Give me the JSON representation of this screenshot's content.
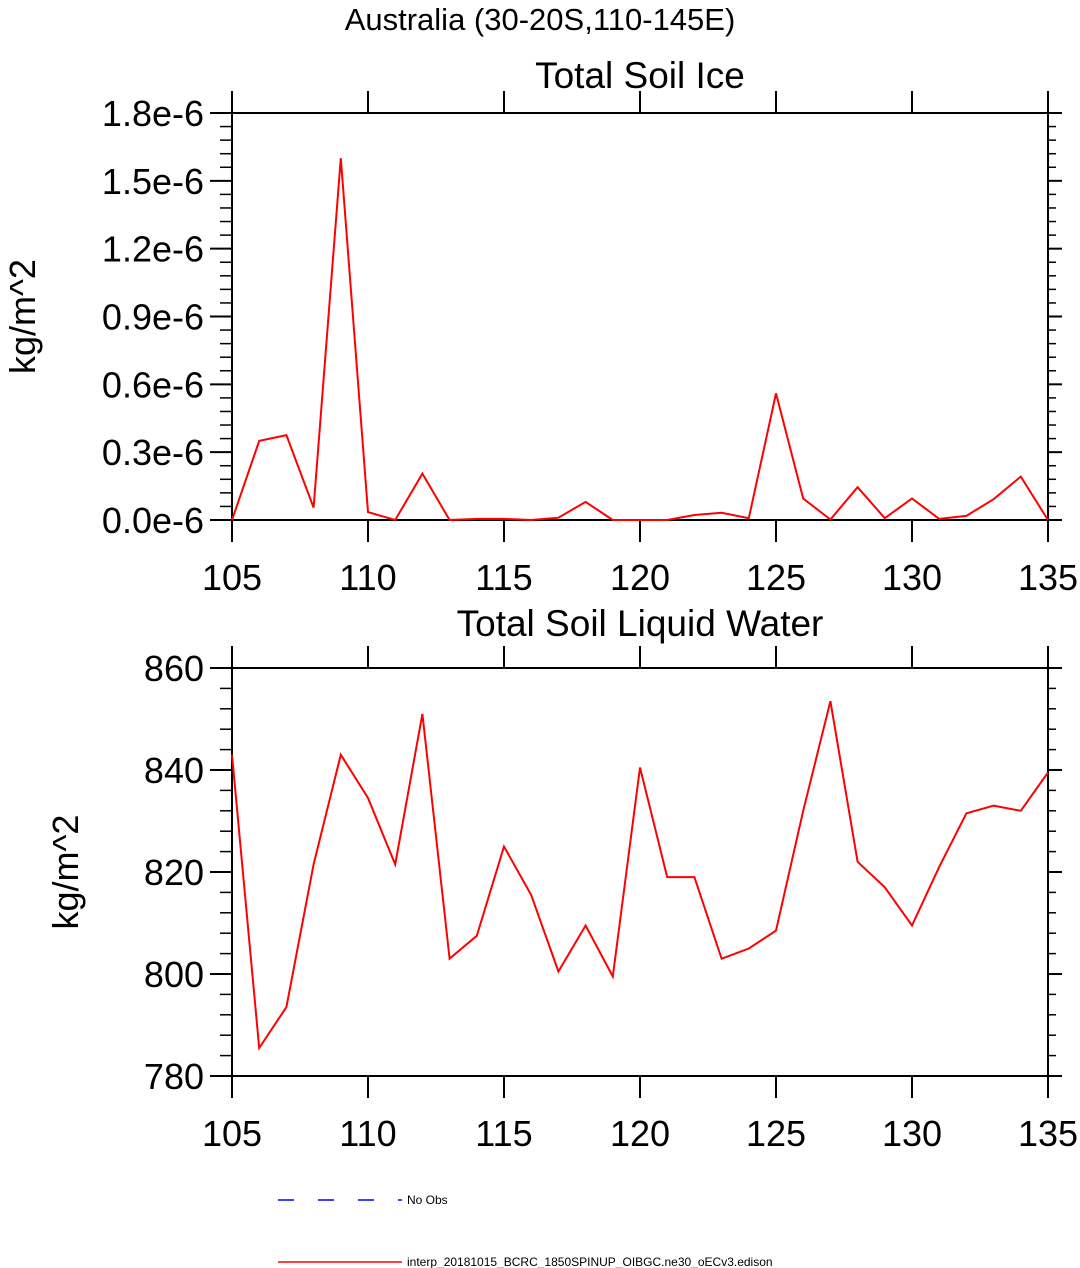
{
  "figure": {
    "title": "Australia (30-20S,110-145E)"
  },
  "colors": {
    "model_line": "#ff0000",
    "obs_line": "#0000ff",
    "axes": "#000000"
  },
  "chart_data": [
    {
      "type": "line",
      "title": "Total Soil Ice",
      "xlabel": "",
      "ylabel": "kg/m^2",
      "xlim": [
        105,
        135
      ],
      "ylim": [
        0,
        1.8e-06
      ],
      "x_ticks": [
        105,
        110,
        115,
        120,
        125,
        130,
        135
      ],
      "x_tick_labels": [
        "105",
        "110",
        "115",
        "120",
        "125",
        "130",
        "135"
      ],
      "y_ticks": [
        0,
        3e-07,
        6e-07,
        9e-07,
        1.2e-06,
        1.5e-06,
        1.8e-06
      ],
      "y_tick_labels": [
        "0.0e-6",
        "0.3e-6",
        "0.6e-6",
        "0.9e-6",
        "1.2e-6",
        "1.5e-6",
        "1.8e-6"
      ],
      "grid": false,
      "series": [
        {
          "name": "interp_20181015_BCRC_1850SPINUP_OIBGC.ne30_oECv3.edison",
          "color": "#ff0000",
          "x": [
            105,
            106,
            107,
            108,
            109,
            110,
            111,
            112,
            113,
            114,
            115,
            116,
            117,
            118,
            119,
            120,
            121,
            122,
            123,
            124,
            125,
            126,
            127,
            128,
            129,
            130,
            131,
            132,
            133,
            134,
            135
          ],
          "y": [
            0,
            3.5e-07,
            3.75e-07,
            5.5e-08,
            1.6e-06,
            3.5e-08,
            0,
            2.05e-07,
            0,
            5e-09,
            5e-09,
            0,
            1e-08,
            8e-08,
            0,
            0,
            0,
            2.2e-08,
            3.2e-08,
            8e-09,
            5.6e-07,
            9.5e-08,
            2e-09,
            1.45e-07,
            8e-09,
            9.5e-08,
            5e-09,
            1.8e-08,
            9.2e-08,
            1.92e-07,
            0
          ]
        }
      ]
    },
    {
      "type": "line",
      "title": "Total Soil Liquid Water",
      "xlabel": "",
      "ylabel": "kg/m^2",
      "xlim": [
        105,
        135
      ],
      "ylim": [
        780,
        860
      ],
      "x_ticks": [
        105,
        110,
        115,
        120,
        125,
        130,
        135
      ],
      "x_tick_labels": [
        "105",
        "110",
        "115",
        "120",
        "125",
        "130",
        "135"
      ],
      "y_ticks": [
        780,
        800,
        820,
        840,
        860
      ],
      "y_tick_labels": [
        "780",
        "800",
        "820",
        "840",
        "860"
      ],
      "grid": false,
      "series": [
        {
          "name": "interp_20181015_BCRC_1850SPINUP_OIBGC.ne30_oECv3.edison",
          "color": "#ff0000",
          "x": [
            105,
            106,
            107,
            108,
            109,
            110,
            111,
            112,
            113,
            114,
            115,
            116,
            117,
            118,
            119,
            120,
            121,
            122,
            123,
            124,
            125,
            126,
            127,
            128,
            129,
            130,
            131,
            132,
            133,
            134,
            135
          ],
          "y": [
            843,
            785.5,
            793.5,
            821.5,
            843,
            834.5,
            821.5,
            851,
            803,
            807.5,
            825,
            815.5,
            800.5,
            809.5,
            799.5,
            840.5,
            819,
            819,
            803,
            805,
            808.5,
            832,
            853.5,
            822,
            817,
            809.5,
            821,
            831.5,
            833,
            832,
            839.5
          ]
        }
      ]
    }
  ],
  "legend": {
    "position": "bottom",
    "items": [
      {
        "label": "No Obs",
        "color": "#0000ff",
        "dash": "dashed"
      },
      {
        "label": "interp_20181015_BCRC_1850SPINUP_OIBGC.ne30_oECv3.edison",
        "color": "#ff0000",
        "dash": "solid"
      }
    ]
  }
}
